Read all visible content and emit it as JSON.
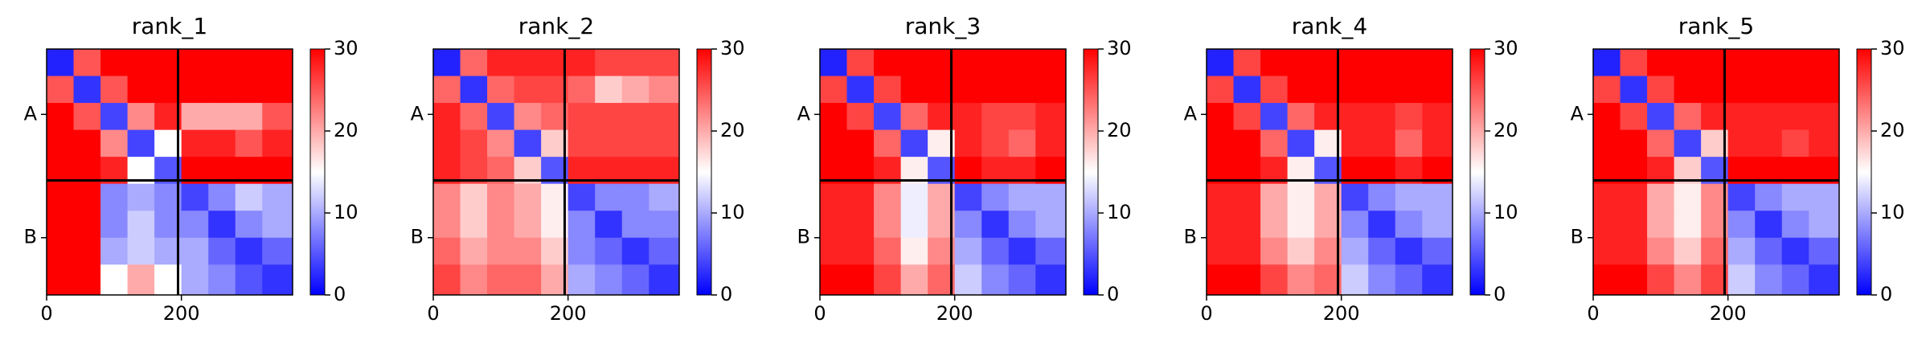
{
  "chart_data": [
    {
      "type": "heatmap",
      "title": "rank_1",
      "bins": [
        0,
        40,
        80,
        120,
        160,
        200,
        240,
        280,
        320,
        365
      ],
      "xlim": [
        0,
        365
      ],
      "ylim": [
        365,
        0
      ],
      "xticks": [
        0,
        200
      ],
      "yticks": [
        {
          "value": 97,
          "label": "A"
        },
        {
          "value": 280,
          "label": "B"
        }
      ],
      "chain_breaks": [
        195
      ],
      "clim": [
        0,
        30
      ],
      "cticks": [
        0,
        10,
        20,
        30
      ],
      "colors": [
        "#0000ff",
        "#ffffff",
        "#ff0000"
      ],
      "z": [
        [
          2,
          25,
          30,
          30,
          30,
          30,
          30,
          30,
          30
        ],
        [
          25,
          3,
          25,
          30,
          30,
          30,
          30,
          30,
          30
        ],
        [
          30,
          25,
          4,
          22,
          28,
          20,
          20,
          20,
          25
        ],
        [
          30,
          30,
          22,
          4,
          15,
          28,
          28,
          25,
          28
        ],
        [
          30,
          30,
          28,
          15,
          5,
          30,
          30,
          30,
          30
        ],
        [
          30,
          30,
          8,
          10,
          8,
          4,
          8,
          12,
          10
        ],
        [
          30,
          30,
          8,
          12,
          8,
          8,
          3,
          8,
          10
        ],
        [
          30,
          30,
          10,
          12,
          10,
          10,
          6,
          3,
          6
        ],
        [
          30,
          30,
          15,
          20,
          15,
          10,
          8,
          5,
          3
        ]
      ]
    },
    {
      "type": "heatmap",
      "title": "rank_2",
      "bins": [
        0,
        40,
        80,
        120,
        160,
        200,
        240,
        280,
        320,
        365
      ],
      "xlim": [
        0,
        365
      ],
      "ylim": [
        365,
        0
      ],
      "xticks": [
        0,
        200
      ],
      "yticks": [
        {
          "value": 97,
          "label": "A"
        },
        {
          "value": 280,
          "label": "B"
        }
      ],
      "chain_breaks": [
        195
      ],
      "clim": [
        0,
        30
      ],
      "cticks": [
        0,
        10,
        20,
        30
      ],
      "colors": [
        "#0000ff",
        "#ffffff",
        "#ff0000"
      ],
      "z": [
        [
          2,
          24,
          28,
          28,
          28,
          28,
          26,
          26,
          26
        ],
        [
          24,
          3,
          24,
          26,
          26,
          24,
          18,
          20,
          22
        ],
        [
          28,
          24,
          4,
          22,
          24,
          26,
          26,
          26,
          26
        ],
        [
          28,
          26,
          22,
          4,
          18,
          26,
          26,
          26,
          26
        ],
        [
          28,
          26,
          24,
          18,
          5,
          28,
          28,
          28,
          28
        ],
        [
          22,
          18,
          22,
          20,
          16,
          4,
          8,
          8,
          10
        ],
        [
          22,
          18,
          22,
          20,
          16,
          8,
          3,
          8,
          8
        ],
        [
          24,
          20,
          22,
          22,
          18,
          8,
          6,
          3,
          6
        ],
        [
          26,
          22,
          24,
          24,
          20,
          10,
          8,
          6,
          3
        ]
      ]
    },
    {
      "type": "heatmap",
      "title": "rank_3",
      "bins": [
        0,
        40,
        80,
        120,
        160,
        200,
        240,
        280,
        320,
        365
      ],
      "xlim": [
        0,
        365
      ],
      "ylim": [
        365,
        0
      ],
      "xticks": [
        0,
        200
      ],
      "yticks": [
        {
          "value": 97,
          "label": "A"
        },
        {
          "value": 280,
          "label": "B"
        }
      ],
      "chain_breaks": [
        195
      ],
      "clim": [
        0,
        30
      ],
      "cticks": [
        0,
        10,
        20,
        30
      ],
      "colors": [
        "#0000ff",
        "#ffffff",
        "#ff0000"
      ],
      "z": [
        [
          2,
          26,
          30,
          30,
          30,
          30,
          30,
          30,
          30
        ],
        [
          26,
          3,
          26,
          30,
          30,
          30,
          30,
          30,
          30
        ],
        [
          30,
          26,
          4,
          24,
          28,
          28,
          26,
          26,
          28
        ],
        [
          30,
          30,
          24,
          4,
          16,
          28,
          26,
          24,
          28
        ],
        [
          30,
          30,
          28,
          16,
          5,
          30,
          28,
          28,
          30
        ],
        [
          28,
          28,
          22,
          14,
          20,
          4,
          8,
          10,
          10
        ],
        [
          28,
          28,
          22,
          14,
          20,
          8,
          3,
          8,
          10
        ],
        [
          28,
          28,
          24,
          16,
          22,
          10,
          6,
          3,
          6
        ],
        [
          30,
          30,
          26,
          20,
          24,
          12,
          8,
          6,
          3
        ]
      ]
    },
    {
      "type": "heatmap",
      "title": "rank_4",
      "bins": [
        0,
        40,
        80,
        120,
        160,
        200,
        240,
        280,
        320,
        365
      ],
      "xlim": [
        0,
        365
      ],
      "ylim": [
        365,
        0
      ],
      "xticks": [
        0,
        200
      ],
      "yticks": [
        {
          "value": 97,
          "label": "A"
        },
        {
          "value": 280,
          "label": "B"
        }
      ],
      "chain_breaks": [
        195
      ],
      "clim": [
        0,
        30
      ],
      "cticks": [
        0,
        10,
        20,
        30
      ],
      "colors": [
        "#0000ff",
        "#ffffff",
        "#ff0000"
      ],
      "z": [
        [
          2,
          26,
          30,
          30,
          30,
          30,
          30,
          30,
          30
        ],
        [
          26,
          3,
          26,
          30,
          30,
          30,
          30,
          30,
          30
        ],
        [
          30,
          26,
          4,
          24,
          28,
          28,
          28,
          26,
          28
        ],
        [
          30,
          30,
          24,
          4,
          16,
          28,
          28,
          24,
          28
        ],
        [
          30,
          30,
          28,
          16,
          5,
          30,
          30,
          28,
          30
        ],
        [
          28,
          28,
          20,
          16,
          20,
          4,
          8,
          10,
          10
        ],
        [
          28,
          28,
          20,
          16,
          20,
          8,
          3,
          8,
          10
        ],
        [
          28,
          28,
          22,
          18,
          22,
          10,
          6,
          3,
          6
        ],
        [
          30,
          30,
          26,
          22,
          24,
          12,
          8,
          6,
          3
        ]
      ]
    },
    {
      "type": "heatmap",
      "title": "rank_5",
      "bins": [
        0,
        40,
        80,
        120,
        160,
        200,
        240,
        280,
        320,
        365
      ],
      "xlim": [
        0,
        365
      ],
      "ylim": [
        365,
        0
      ],
      "xticks": [
        0,
        200
      ],
      "yticks": [
        {
          "value": 97,
          "label": "A"
        },
        {
          "value": 280,
          "label": "B"
        }
      ],
      "chain_breaks": [
        195
      ],
      "clim": [
        0,
        30
      ],
      "cticks": [
        0,
        10,
        20,
        30
      ],
      "colors": [
        "#0000ff",
        "#ffffff",
        "#ff0000"
      ],
      "z": [
        [
          2,
          26,
          30,
          30,
          30,
          30,
          30,
          30,
          30
        ],
        [
          26,
          3,
          26,
          30,
          30,
          30,
          30,
          30,
          30
        ],
        [
          30,
          26,
          4,
          24,
          28,
          28,
          28,
          28,
          28
        ],
        [
          30,
          30,
          24,
          4,
          18,
          28,
          28,
          26,
          28
        ],
        [
          30,
          30,
          28,
          18,
          5,
          30,
          30,
          30,
          30
        ],
        [
          28,
          28,
          20,
          16,
          22,
          4,
          8,
          10,
          10
        ],
        [
          28,
          28,
          20,
          16,
          22,
          8,
          3,
          8,
          10
        ],
        [
          28,
          28,
          22,
          18,
          24,
          10,
          6,
          3,
          6
        ],
        [
          30,
          30,
          26,
          22,
          26,
          12,
          8,
          6,
          3
        ]
      ]
    }
  ]
}
